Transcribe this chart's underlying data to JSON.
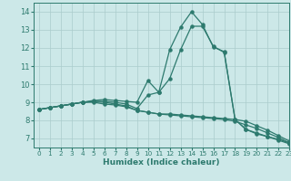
{
  "title": "",
  "xlabel": "Humidex (Indice chaleur)",
  "background_color": "#cce8e8",
  "grid_color": "#aacccc",
  "line_color": "#2d7a6e",
  "xlim": [
    -0.5,
    23
  ],
  "ylim": [
    6.5,
    14.5
  ],
  "xticks": [
    0,
    1,
    2,
    3,
    4,
    5,
    6,
    7,
    8,
    9,
    10,
    11,
    12,
    13,
    14,
    15,
    16,
    17,
    18,
    19,
    20,
    21,
    22,
    23
  ],
  "yticks": [
    7,
    8,
    9,
    10,
    11,
    12,
    13,
    14
  ],
  "line1_x": [
    0,
    1,
    2,
    3,
    4,
    5,
    6,
    7,
    8,
    9,
    10,
    11,
    12,
    13,
    14,
    15,
    16,
    17,
    18,
    19,
    20,
    21,
    22,
    23
  ],
  "line1_y": [
    8.6,
    8.7,
    8.8,
    8.9,
    9.0,
    9.0,
    8.9,
    8.85,
    8.75,
    8.55,
    8.45,
    8.35,
    8.3,
    8.25,
    8.2,
    8.15,
    8.1,
    8.05,
    7.95,
    7.75,
    7.55,
    7.3,
    7.05,
    6.75
  ],
  "line2_x": [
    0,
    1,
    2,
    3,
    4,
    5,
    6,
    7,
    8,
    9,
    10,
    11,
    12,
    13,
    14,
    15,
    16,
    17,
    18,
    19,
    20,
    21,
    22,
    23
  ],
  "line2_y": [
    8.6,
    8.7,
    8.8,
    8.9,
    9.0,
    9.1,
    9.15,
    9.1,
    9.05,
    9.0,
    10.2,
    9.55,
    11.9,
    13.15,
    14.0,
    13.3,
    12.05,
    11.8,
    8.05,
    7.5,
    7.3,
    7.1,
    6.9,
    6.7
  ],
  "line3_x": [
    0,
    1,
    2,
    3,
    4,
    5,
    6,
    7,
    8,
    9,
    10,
    11,
    12,
    13,
    14,
    15,
    16,
    17,
    18,
    19,
    20,
    21,
    22,
    23
  ],
  "line3_y": [
    8.6,
    8.7,
    8.8,
    8.9,
    9.0,
    9.05,
    9.05,
    9.0,
    8.9,
    8.65,
    9.4,
    9.55,
    10.3,
    11.9,
    13.2,
    13.2,
    12.1,
    11.75,
    8.05,
    7.5,
    7.25,
    7.1,
    6.95,
    6.75
  ],
  "line4_x": [
    0,
    1,
    2,
    3,
    4,
    5,
    6,
    7,
    8,
    9,
    10,
    11,
    12,
    13,
    14,
    15,
    16,
    17,
    18,
    19,
    20,
    21,
    22,
    23
  ],
  "line4_y": [
    8.6,
    8.7,
    8.8,
    8.9,
    9.0,
    9.05,
    9.0,
    8.9,
    8.8,
    8.55,
    8.45,
    8.35,
    8.35,
    8.3,
    8.25,
    8.2,
    8.15,
    8.1,
    8.05,
    7.95,
    7.7,
    7.45,
    7.15,
    6.85
  ]
}
